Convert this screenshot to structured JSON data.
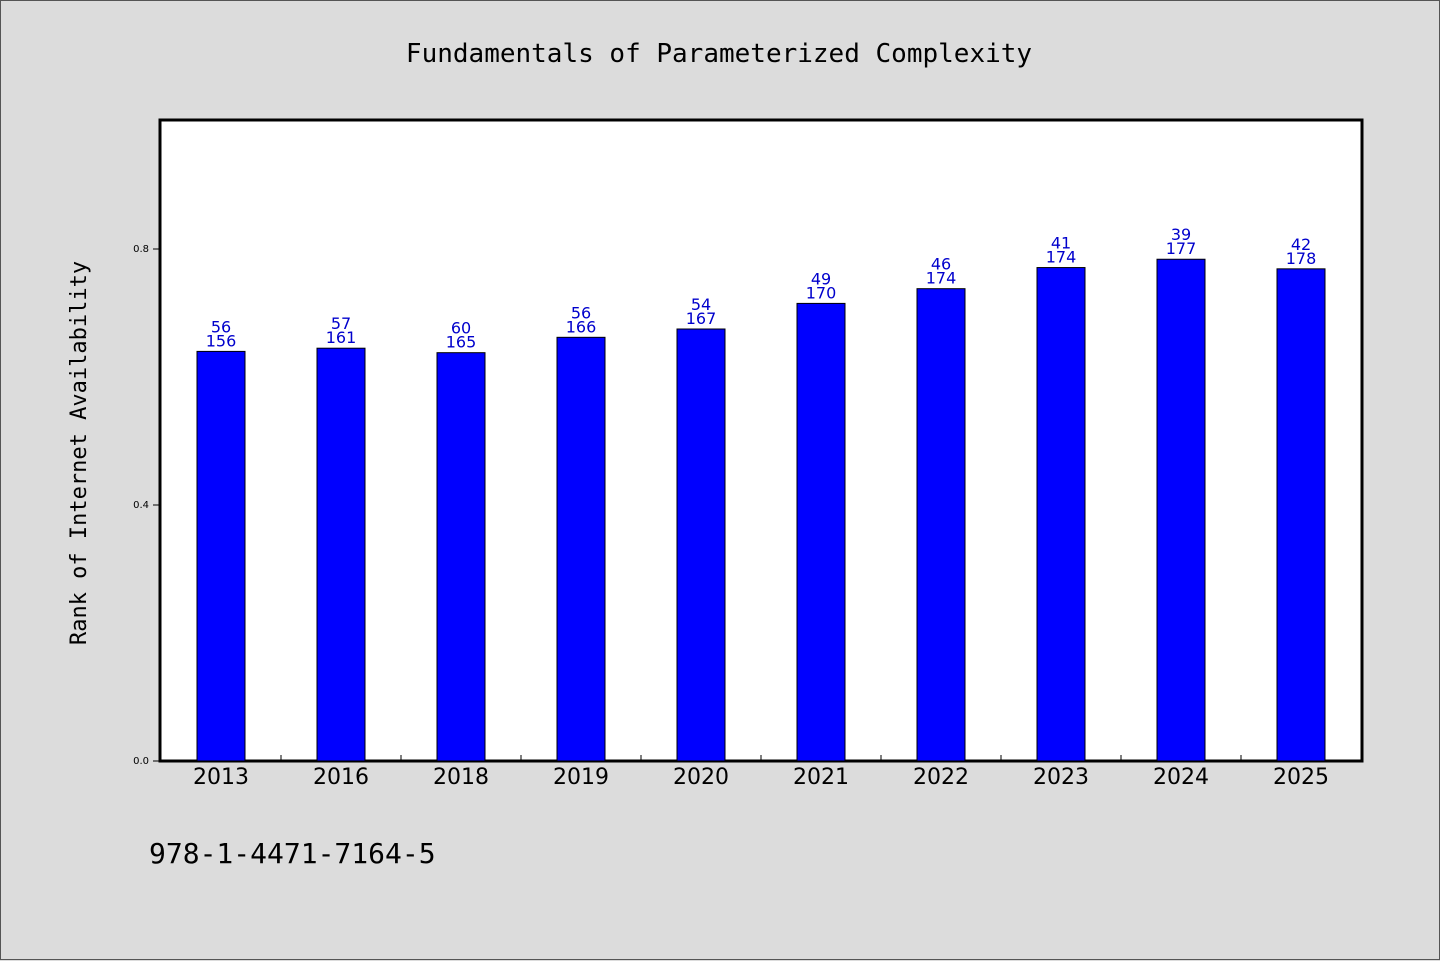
{
  "chart_data": {
    "type": "bar",
    "title": "Fundamentals of Parameterized Complexity",
    "xlabel": "",
    "ylabel": "Rank of Internet Availability",
    "categories": [
      "2013",
      "2016",
      "2018",
      "2019",
      "2020",
      "2021",
      "2022",
      "2023",
      "2024",
      "2025"
    ],
    "values": [
      0.64,
      0.645,
      0.638,
      0.662,
      0.675,
      0.715,
      0.738,
      0.771,
      0.784,
      0.769
    ],
    "label_top": [
      "56",
      "57",
      "60",
      "56",
      "54",
      "49",
      "46",
      "41",
      "39",
      "42"
    ],
    "label_bottom": [
      "156",
      "161",
      "165",
      "166",
      "167",
      "170",
      "174",
      "174",
      "177",
      "178"
    ],
    "yticks": [
      0.0,
      0.4,
      0.8
    ],
    "ytick_labels": [
      "0.0",
      "0.4",
      "0.8"
    ],
    "ylim": [
      0,
      1.0
    ],
    "grid": false,
    "bar_color": "#0000ff",
    "label_color": "#0000cc"
  },
  "footer": {
    "isbn": "978-1-4471-7164-5"
  }
}
